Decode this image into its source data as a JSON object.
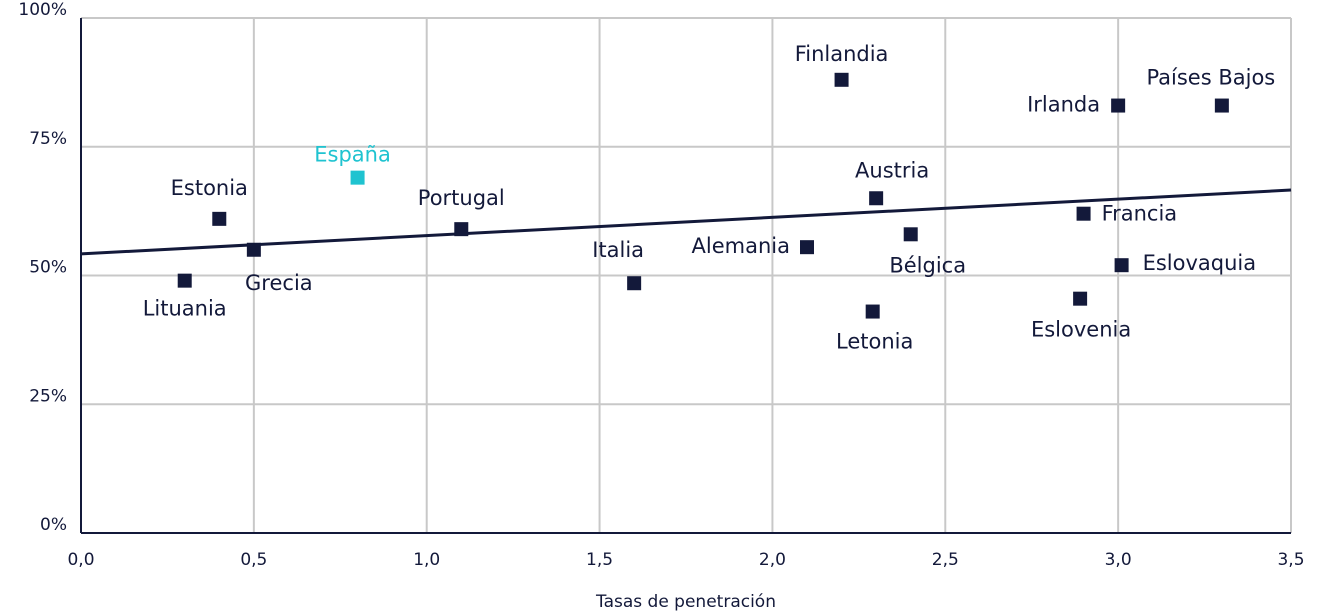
{
  "chart_data": {
    "type": "scatter",
    "x_label": "Tasas de penetración",
    "labels": [
      "Lituania",
      "Estonia",
      "Grecia",
      "España",
      "Portugal",
      "Italia",
      "Alemania",
      "Finlandia",
      "Letonia",
      "Austria",
      "Bélgica",
      "Eslovenia",
      "Francia",
      "Irlanda",
      "Eslovaquia",
      "Países Bajos"
    ],
    "x": [
      0.3,
      0.4,
      0.5,
      0.8,
      1.1,
      1.6,
      2.1,
      2.2,
      2.29,
      2.3,
      2.4,
      2.89,
      2.9,
      3.0,
      3.01,
      3.3
    ],
    "y": [
      49,
      61,
      55,
      69,
      59,
      48.5,
      55.5,
      88,
      43,
      65,
      58,
      45.5,
      62,
      83,
      52,
      83
    ],
    "colors": [
      "#13193a",
      "#13193a",
      "#13193a",
      "#1fc3d0",
      "#13193a",
      "#13193a",
      "#13193a",
      "#13193a",
      "#13193a",
      "#13193a",
      "#13193a",
      "#13193a",
      "#13193a",
      "#13193a",
      "#13193a",
      "#13193a"
    ],
    "trendline": {
      "x": [
        0,
        3.5
      ],
      "y": [
        54.2,
        66.6
      ],
      "color": "#13193a"
    },
    "xlim": [
      0,
      3.5
    ],
    "xticks": [
      {
        "value": 0,
        "label": "0,0"
      },
      {
        "value": 0.5,
        "label": "0,5"
      },
      {
        "value": 1,
        "label": "1,0"
      },
      {
        "value": 1.5,
        "label": "1,5"
      },
      {
        "value": 2,
        "label": "2,0"
      },
      {
        "value": 2.5,
        "label": "2,5"
      },
      {
        "value": 3,
        "label": "3,0"
      },
      {
        "value": 3.5,
        "label": "3,5"
      }
    ],
    "ylim": [
      0,
      100
    ],
    "yticks": [
      {
        "value": 0,
        "label": "0%"
      },
      {
        "value": 25,
        "label": "25%"
      },
      {
        "value": 50,
        "label": "50%"
      },
      {
        "value": 75,
        "label": "75%"
      },
      {
        "value": 100,
        "label": "100%"
      }
    ],
    "grid": true
  }
}
